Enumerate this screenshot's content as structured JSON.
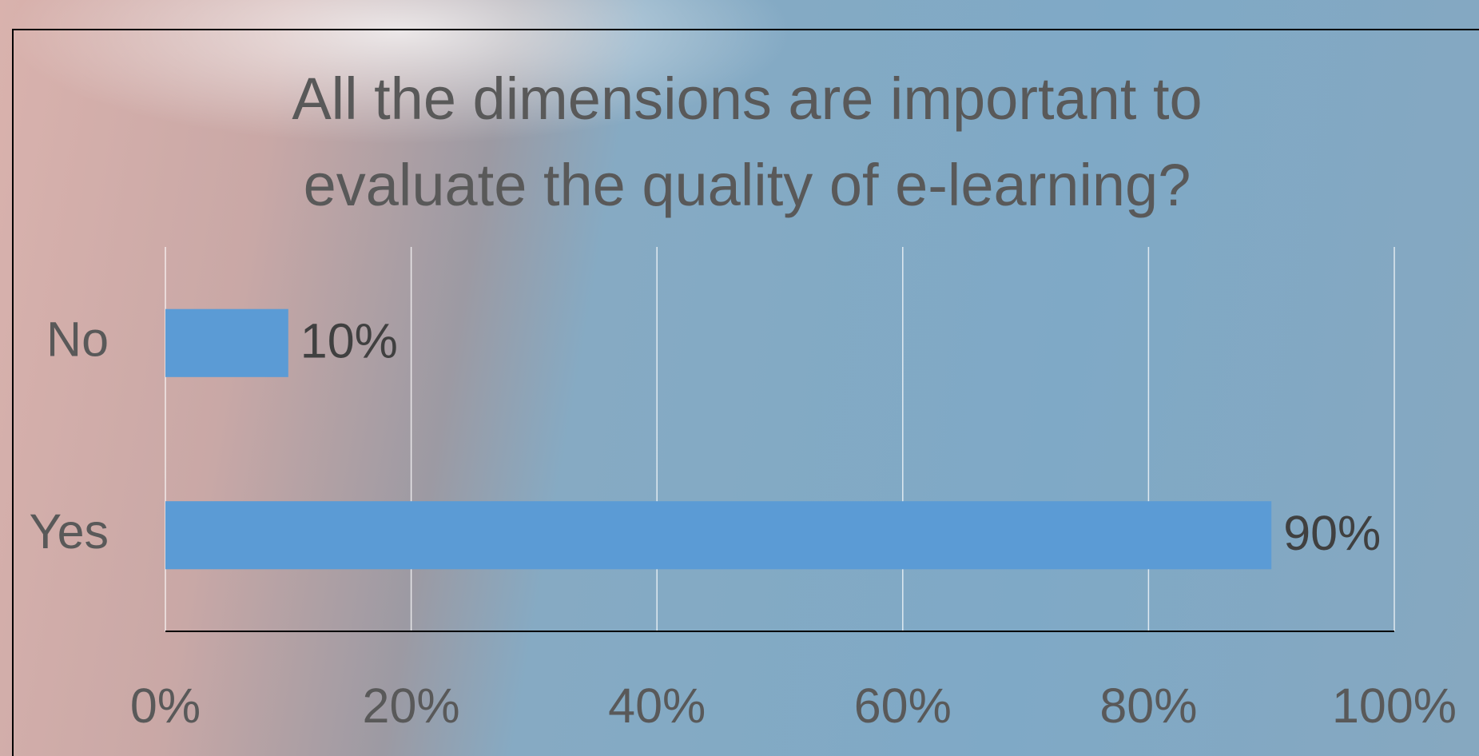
{
  "chart_data": {
    "type": "bar",
    "orientation": "horizontal",
    "title": "All the dimensions are important to evaluate the quality of e-learning?",
    "categories": [
      "No",
      "Yes"
    ],
    "values": [
      10,
      90
    ],
    "value_labels": [
      "10%",
      "90%"
    ],
    "color": "#5b9bd5",
    "xlim": [
      0,
      100
    ],
    "xticks": [
      {
        "value": 0,
        "label": "0%"
      },
      {
        "value": 20,
        "label": "20%"
      },
      {
        "value": 40,
        "label": "40%"
      },
      {
        "value": 60,
        "label": "60%"
      },
      {
        "value": 80,
        "label": "80%"
      },
      {
        "value": 100,
        "label": "100%"
      }
    ],
    "grid": true
  }
}
